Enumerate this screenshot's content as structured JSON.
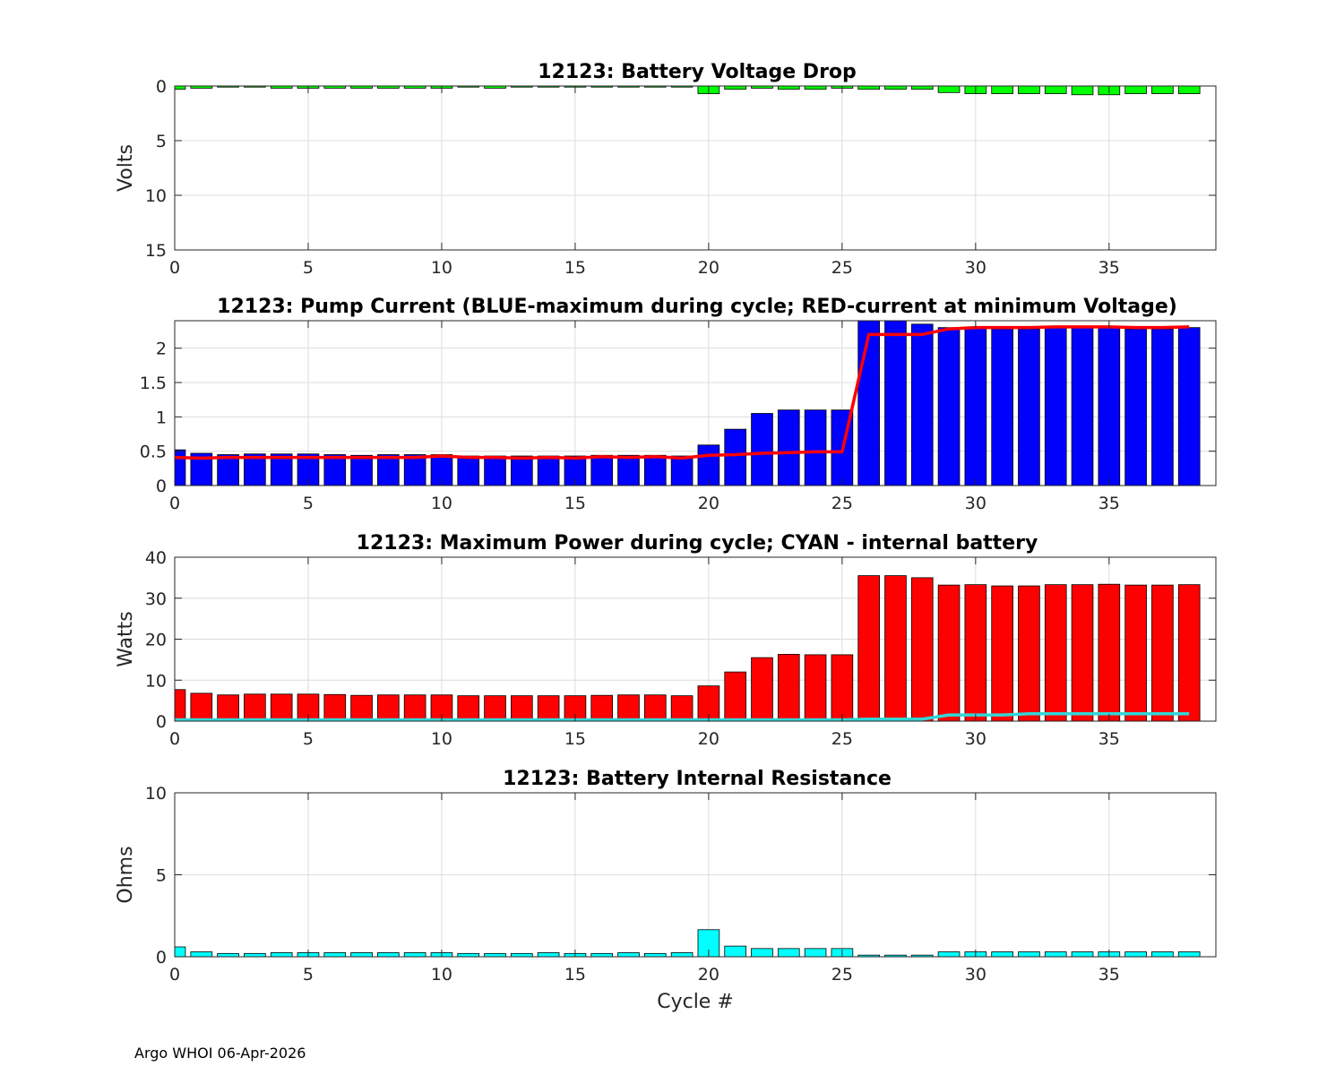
{
  "footer": "Argo WHOI 06-Apr-2026",
  "chart_data": [
    {
      "type": "bar",
      "title": "12123: Battery Voltage Drop",
      "xlabel": "",
      "ylabel": "Volts",
      "xlim": [
        0,
        39
      ],
      "ylim": [
        0,
        15
      ],
      "y_reversed": true,
      "xticks": [
        0,
        5,
        10,
        15,
        20,
        25,
        30,
        35
      ],
      "yticks": [
        0,
        5,
        10,
        15
      ],
      "ytick_labels": [
        "0",
        "5",
        "10",
        "15"
      ],
      "grid": true,
      "bar_color": "#00ff00",
      "x": [
        0,
        1,
        2,
        3,
        4,
        5,
        6,
        7,
        8,
        9,
        10,
        11,
        12,
        13,
        14,
        15,
        16,
        17,
        18,
        19,
        20,
        21,
        22,
        23,
        24,
        25,
        26,
        27,
        28,
        29,
        30,
        31,
        32,
        33,
        34,
        35,
        36,
        37,
        38
      ],
      "values": [
        0.3,
        0.2,
        0.1,
        0.1,
        0.2,
        0.2,
        0.2,
        0.2,
        0.2,
        0.2,
        0.2,
        0.1,
        0.2,
        0.1,
        0.1,
        0.1,
        0.1,
        0.1,
        0.1,
        0.1,
        0.7,
        0.3,
        0.2,
        0.3,
        0.3,
        0.2,
        0.3,
        0.3,
        0.3,
        0.6,
        0.7,
        0.7,
        0.7,
        0.7,
        0.8,
        0.8,
        0.7,
        0.7,
        0.7
      ]
    },
    {
      "type": "bar",
      "title": "12123: Pump Current (BLUE-maximum during cycle; RED-current at minimum Voltage)",
      "xlabel": "",
      "ylabel": "",
      "xlim": [
        0,
        39
      ],
      "ylim": [
        0,
        2.4
      ],
      "xticks": [
        0,
        5,
        10,
        15,
        20,
        25,
        30,
        35
      ],
      "yticks": [
        0,
        0.5,
        1,
        1.5,
        2
      ],
      "ytick_labels": [
        "0",
        "0.5",
        "1",
        "1.5",
        "2"
      ],
      "grid": true,
      "bar_color": "#0000ff",
      "line_color": "#ff0000",
      "x": [
        0,
        1,
        2,
        3,
        4,
        5,
        6,
        7,
        8,
        9,
        10,
        11,
        12,
        13,
        14,
        15,
        16,
        17,
        18,
        19,
        20,
        21,
        22,
        23,
        24,
        25,
        26,
        27,
        28,
        29,
        30,
        31,
        32,
        33,
        34,
        35,
        36,
        37,
        38
      ],
      "series": [
        {
          "name": "maximum during cycle",
          "kind": "bar",
          "values": [
            0.52,
            0.47,
            0.45,
            0.46,
            0.46,
            0.46,
            0.45,
            0.44,
            0.45,
            0.45,
            0.45,
            0.43,
            0.43,
            0.43,
            0.43,
            0.43,
            0.44,
            0.44,
            0.44,
            0.43,
            0.59,
            0.82,
            1.05,
            1.1,
            1.1,
            1.1,
            2.55,
            2.45,
            2.35,
            2.3,
            2.3,
            2.28,
            2.28,
            2.3,
            2.3,
            2.3,
            2.28,
            2.28,
            2.3
          ]
        },
        {
          "name": "current at minimum Voltage",
          "kind": "line",
          "values": [
            0.41,
            0.4,
            0.41,
            0.41,
            0.41,
            0.41,
            0.41,
            0.41,
            0.41,
            0.41,
            0.43,
            0.41,
            0.41,
            0.4,
            0.41,
            0.4,
            0.42,
            0.41,
            0.42,
            0.4,
            0.44,
            0.45,
            0.47,
            0.48,
            0.49,
            0.49,
            2.2,
            2.2,
            2.2,
            2.28,
            2.3,
            2.3,
            2.3,
            2.31,
            2.31,
            2.31,
            2.3,
            2.3,
            2.31
          ]
        }
      ]
    },
    {
      "type": "bar",
      "title": "12123: Maximum Power during cycle; CYAN - internal battery",
      "xlabel": "",
      "ylabel": "Watts",
      "xlim": [
        0,
        39
      ],
      "ylim": [
        0,
        40
      ],
      "xticks": [
        0,
        5,
        10,
        15,
        20,
        25,
        30,
        35
      ],
      "yticks": [
        0,
        10,
        20,
        30,
        40
      ],
      "ytick_labels": [
        "0",
        "10",
        "20",
        "30",
        "40"
      ],
      "grid": true,
      "bar_color": "#ff0000",
      "line_color": "#33d6d6",
      "x": [
        0,
        1,
        2,
        3,
        4,
        5,
        6,
        7,
        8,
        9,
        10,
        11,
        12,
        13,
        14,
        15,
        16,
        17,
        18,
        19,
        20,
        21,
        22,
        23,
        24,
        25,
        26,
        27,
        28,
        29,
        30,
        31,
        32,
        33,
        34,
        35,
        36,
        37,
        38
      ],
      "series": [
        {
          "name": "Maximum Power",
          "kind": "bar",
          "values": [
            7.7,
            6.8,
            6.4,
            6.6,
            6.6,
            6.6,
            6.5,
            6.3,
            6.4,
            6.4,
            6.4,
            6.2,
            6.2,
            6.2,
            6.2,
            6.2,
            6.3,
            6.4,
            6.4,
            6.2,
            8.6,
            12.0,
            15.5,
            16.3,
            16.2,
            16.2,
            35.5,
            35.5,
            35.0,
            33.2,
            33.3,
            33.0,
            33.0,
            33.3,
            33.3,
            33.4,
            33.2,
            33.2,
            33.3
          ]
        },
        {
          "name": "internal battery",
          "kind": "line",
          "values": [
            0.1,
            0.0,
            0.0,
            0.0,
            0.0,
            0.0,
            0.0,
            0.0,
            0.0,
            0.0,
            0.0,
            0.0,
            0.0,
            0.0,
            0.0,
            0.0,
            0.0,
            0.0,
            0.0,
            0.0,
            0.2,
            0.2,
            0.2,
            0.2,
            0.2,
            0.2,
            0.5,
            0.5,
            0.5,
            1.5,
            1.5,
            1.5,
            1.8,
            1.8,
            1.8,
            1.8,
            1.8,
            1.8,
            1.8
          ]
        }
      ]
    },
    {
      "type": "bar",
      "title": "12123: Battery Internal Resistance",
      "xlabel": "Cycle #",
      "ylabel": "Ohms",
      "xlim": [
        0,
        39
      ],
      "ylim": [
        0,
        10
      ],
      "xticks": [
        0,
        5,
        10,
        15,
        20,
        25,
        30,
        35
      ],
      "yticks": [
        0,
        5,
        10
      ],
      "ytick_labels": [
        "0",
        "5",
        "10"
      ],
      "grid": true,
      "bar_color": "#00ffff",
      "x": [
        0,
        1,
        2,
        3,
        4,
        5,
        6,
        7,
        8,
        9,
        10,
        11,
        12,
        13,
        14,
        15,
        16,
        17,
        18,
        19,
        20,
        21,
        22,
        23,
        24,
        25,
        26,
        27,
        28,
        29,
        30,
        31,
        32,
        33,
        34,
        35,
        36,
        37,
        38
      ],
      "values": [
        0.6,
        0.3,
        0.2,
        0.2,
        0.25,
        0.25,
        0.25,
        0.25,
        0.25,
        0.25,
        0.25,
        0.2,
        0.2,
        0.2,
        0.25,
        0.2,
        0.2,
        0.25,
        0.2,
        0.25,
        1.65,
        0.65,
        0.5,
        0.5,
        0.5,
        0.5,
        0.1,
        0.1,
        0.1,
        0.3,
        0.3,
        0.3,
        0.3,
        0.3,
        0.3,
        0.3,
        0.3,
        0.3,
        0.3
      ]
    }
  ]
}
